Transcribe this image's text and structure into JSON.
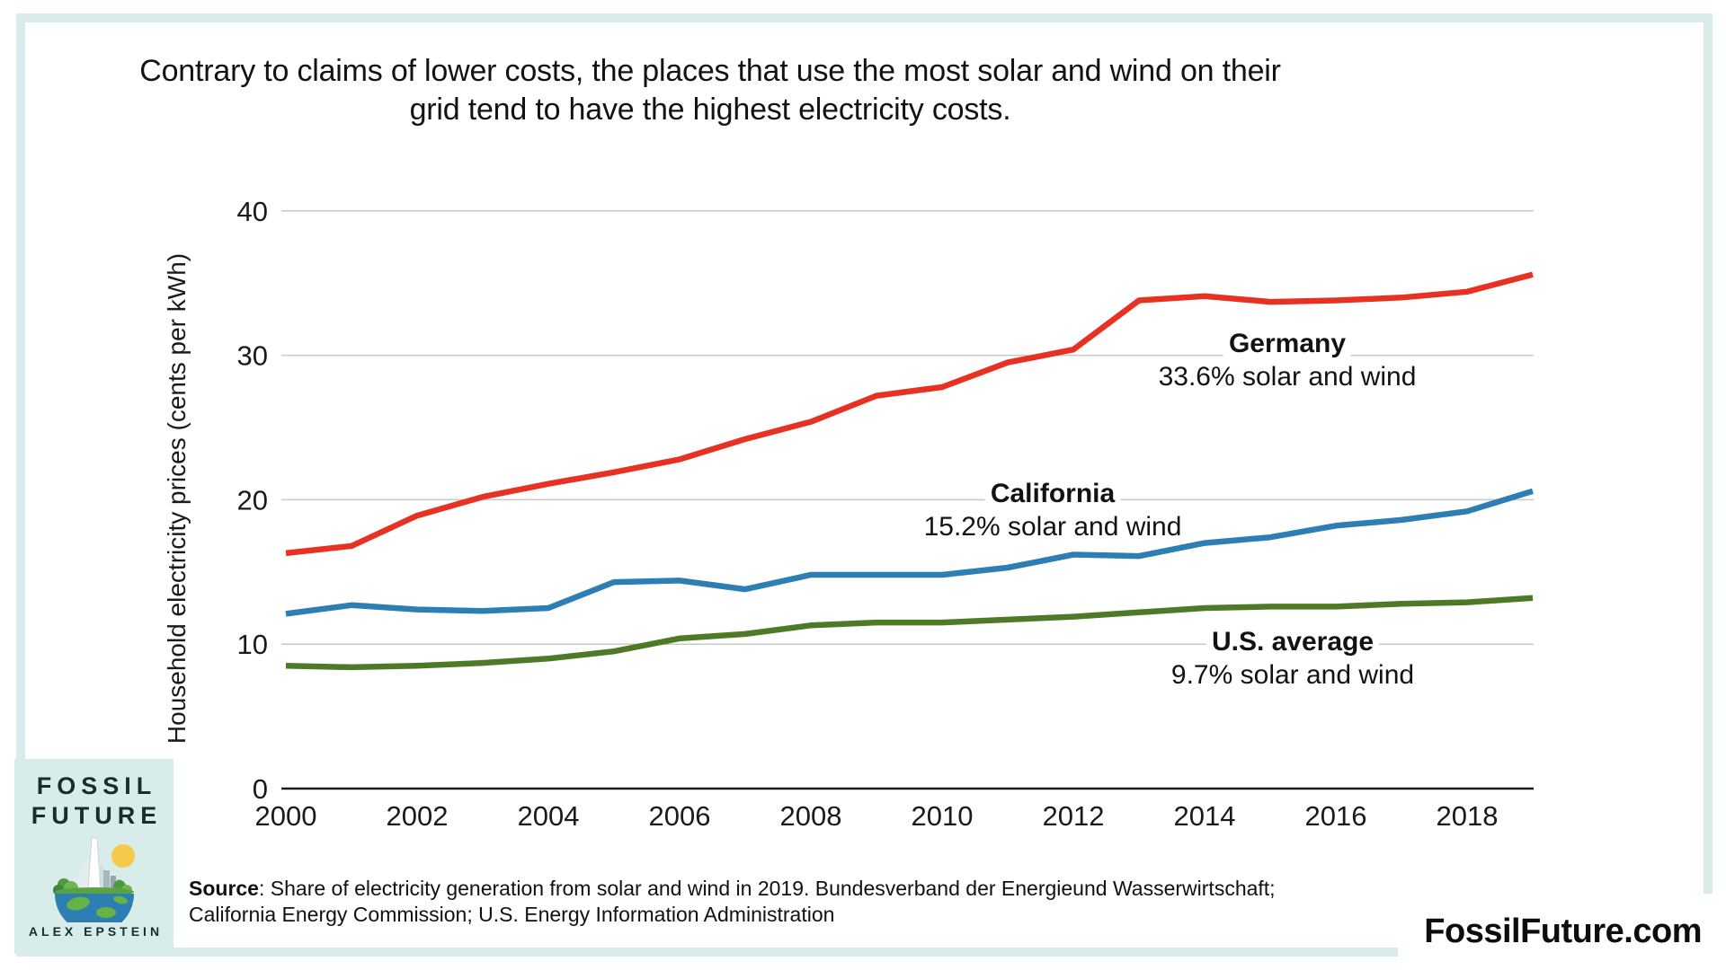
{
  "chart_data": {
    "type": "line",
    "title": "Contrary to claims of lower costs, the places that use the most solar and wind on their grid tend to have the highest electricity costs.",
    "title_lines": [
      "Contrary to claims of lower costs, the places that use the most solar and wind on their",
      "grid tend to have the highest electricity costs."
    ],
    "ylabel": "Household electricity prices (cents per kWh)",
    "xlabel": "",
    "ylim": [
      0,
      40
    ],
    "grid": true,
    "legend_position": "inline-annotations",
    "x": [
      2000,
      2001,
      2002,
      2003,
      2004,
      2005,
      2006,
      2007,
      2008,
      2009,
      2010,
      2011,
      2012,
      2013,
      2014,
      2015,
      2016,
      2017,
      2018,
      2019
    ],
    "x_tick_labels": [
      "2000",
      "2002",
      "2004",
      "2006",
      "2008",
      "2010",
      "2012",
      "2014",
      "2016",
      "2018"
    ],
    "y_ticks": [
      0,
      10,
      20,
      30,
      40
    ],
    "series": [
      {
        "name": "Germany",
        "annotation": "33.6% solar and wind",
        "color": "#e73223",
        "values": [
          16.3,
          16.8,
          18.9,
          20.2,
          21.1,
          21.9,
          22.8,
          24.2,
          25.4,
          27.2,
          27.8,
          29.5,
          30.4,
          33.8,
          34.1,
          33.7,
          33.8,
          34.0,
          34.4,
          35.6
        ]
      },
      {
        "name": "California",
        "annotation": "15.2% solar and wind",
        "color": "#2d7eb3",
        "values": [
          12.1,
          12.7,
          12.4,
          12.3,
          12.5,
          14.3,
          14.4,
          13.8,
          14.8,
          14.8,
          14.8,
          15.3,
          16.2,
          16.1,
          17.0,
          17.4,
          18.2,
          18.6,
          19.2,
          20.6
        ]
      },
      {
        "name": "U.S. average",
        "annotation": "9.7% solar and wind",
        "color": "#4e7a27",
        "values": [
          8.5,
          8.4,
          8.5,
          8.7,
          9.0,
          9.5,
          10.4,
          10.7,
          11.3,
          11.5,
          11.5,
          11.7,
          11.9,
          12.2,
          12.5,
          12.6,
          12.6,
          12.8,
          12.9,
          13.2
        ]
      }
    ]
  },
  "source": {
    "label": "Source",
    "text1": ": Share of electricity generation from solar and wind in 2019. Bundesverband der Energieund Wasserwirtschaft;",
    "text2": "California Energy Commission; U.S. Energy Information Administration"
  },
  "footer": {
    "website": "FossilFuture.com"
  },
  "logo": {
    "title_line1": "FOSSIL",
    "title_line2": "FUTURE",
    "author": "ALEX EPSTEIN"
  },
  "colors": {
    "frame_mint": "#d8ecea",
    "germany_red": "#e73223",
    "california_blue": "#2d7eb3",
    "us_green": "#4e7a27",
    "gridline_gray": "#c9c9c9"
  }
}
